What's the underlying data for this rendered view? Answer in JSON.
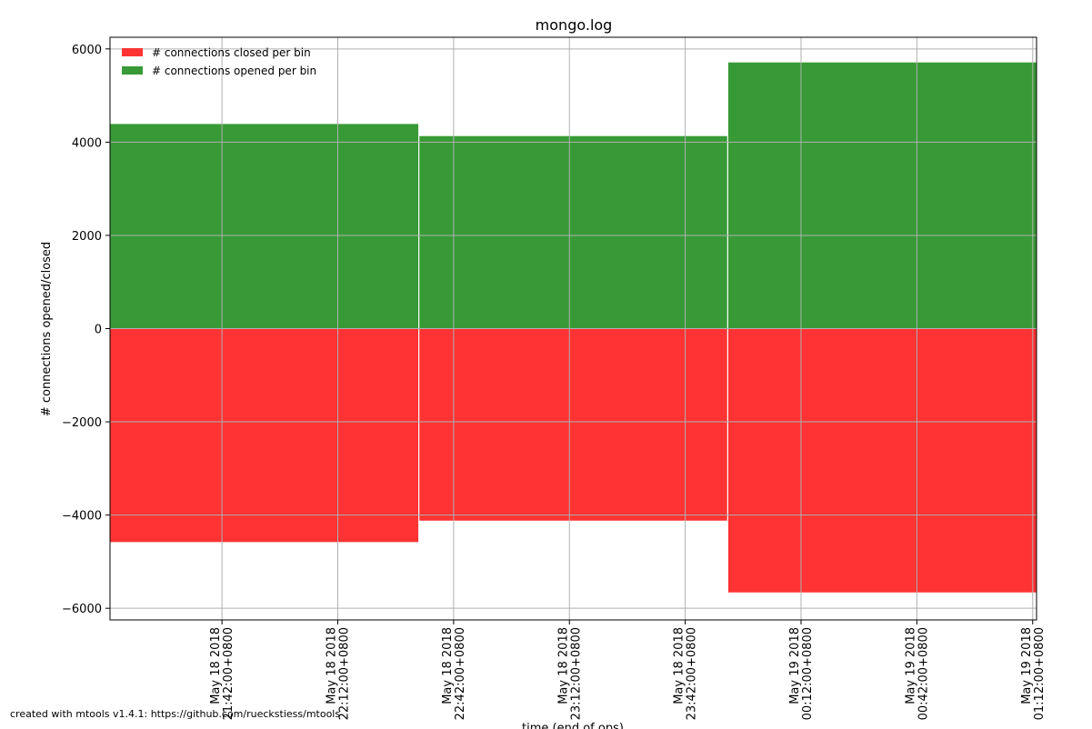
{
  "chart_data": {
    "type": "bar",
    "title": "mongo.log",
    "xlabel": "time (end of ops)",
    "ylabel": "# connections opened/closed",
    "ylim": [
      -6250,
      6250
    ],
    "yticks": [
      6000,
      4000,
      2000,
      0,
      -2000,
      -4000,
      -6000
    ],
    "ytick_labels": [
      "6000",
      "4000",
      "2000",
      "0",
      "−2000",
      "−4000",
      "−6000"
    ],
    "xticks": [
      {
        "line1": "May 18 2018",
        "line2": "21:42:00+0800",
        "t": 0
      },
      {
        "line1": "May 18 2018",
        "line2": "22:12:00+0800",
        "t": 30
      },
      {
        "line1": "May 18 2018",
        "line2": "22:42:00+0800",
        "t": 60
      },
      {
        "line1": "May 18 2018",
        "line2": "23:12:00+0800",
        "t": 90
      },
      {
        "line1": "May 18 2018",
        "line2": "23:42:00+0800",
        "t": 120
      },
      {
        "line1": "May 19 2018",
        "line2": "00:12:00+0800",
        "t": 150
      },
      {
        "line1": "May 19 2018",
        "line2": "00:42:00+0800",
        "t": 180
      },
      {
        "line1": "May 19 2018",
        "line2": "01:12:00+0800",
        "t": 210
      }
    ],
    "xlim_t": [
      -29,
      211
    ],
    "bins": [
      {
        "start_t": -29,
        "end_t": 51,
        "opened": 4390,
        "closed": -4580
      },
      {
        "start_t": 51,
        "end_t": 131,
        "opened": 4130,
        "closed": -4120
      },
      {
        "start_t": 131,
        "end_t": 211,
        "opened": 5710,
        "closed": -5660
      }
    ],
    "series": [
      {
        "name": "# connections closed per bin",
        "color": "#ff3333"
      },
      {
        "name": "# connections opened per bin",
        "color": "#389a37"
      }
    ],
    "legend_position": "top-left",
    "grid": true
  },
  "footer_text": "created with mtools v1.4.1: https://github.com/rueckstiess/mtools"
}
